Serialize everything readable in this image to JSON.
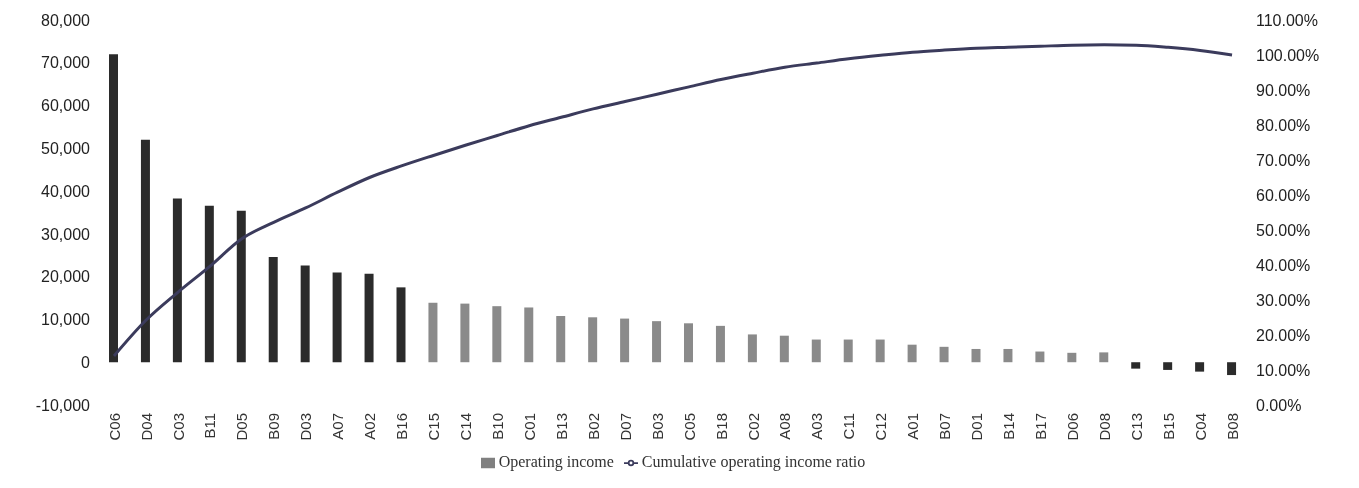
{
  "chart_data": {
    "type": "bar",
    "categories": [
      "C06",
      "D04",
      "C03",
      "B11",
      "D05",
      "B09",
      "D03",
      "A07",
      "A02",
      "B16",
      "C15",
      "C14",
      "B10",
      "C01",
      "B13",
      "B02",
      "D07",
      "B03",
      "C05",
      "B18",
      "C02",
      "A08",
      "A03",
      "C11",
      "C12",
      "A01",
      "B07",
      "D01",
      "B14",
      "B17",
      "D06",
      "D08",
      "C13",
      "B15",
      "C04",
      "B08"
    ],
    "series": [
      {
        "name": "Operating income",
        "color": "#808080",
        "colors": [
          "#2b2b2b",
          "#2b2b2b",
          "#2b2b2b",
          "#2b2b2b",
          "#2b2b2b",
          "#2b2b2b",
          "#2b2b2b",
          "#2b2b2b",
          "#2b2b2b",
          "#2b2b2b",
          "#8a8a8a",
          "#8a8a8a",
          "#8a8a8a",
          "#8a8a8a",
          "#8a8a8a",
          "#8a8a8a",
          "#8a8a8a",
          "#8a8a8a",
          "#8a8a8a",
          "#8a8a8a",
          "#8a8a8a",
          "#8a8a8a",
          "#8a8a8a",
          "#8a8a8a",
          "#8a8a8a",
          "#8a8a8a",
          "#8a8a8a",
          "#8a8a8a",
          "#8a8a8a",
          "#8a8a8a",
          "#8a8a8a",
          "#8a8a8a",
          "#2b2b2b",
          "#2b2b2b",
          "#2b2b2b",
          "#2b2b2b"
        ],
        "values": [
          72000,
          52000,
          38300,
          36600,
          35400,
          24600,
          22600,
          21000,
          20700,
          17500,
          13900,
          13700,
          13100,
          12800,
          10800,
          10500,
          10200,
          9600,
          9100,
          8500,
          6500,
          6200,
          5300,
          5300,
          5300,
          4100,
          3600,
          3100,
          3100,
          2500,
          2200,
          2300,
          -1500,
          -1800,
          -2200,
          -3000
        ]
      },
      {
        "name": "Cumulative operating income ratio",
        "type": "line",
        "axis": "y2",
        "color": "#3b3b5c",
        "values": [
          14,
          24.2,
          32.2,
          39.6,
          47.5,
          52.2,
          56.3,
          60.8,
          65,
          68.3,
          71.3,
          74.2,
          77,
          79.8,
          82.2,
          84.6,
          86.7,
          88.8,
          90.9,
          93,
          94.8,
          96.5,
          97.7,
          98.9,
          99.9,
          100.8,
          101.4,
          101.9,
          102.2,
          102.5,
          102.8,
          102.9,
          102.8,
          102.2,
          101.3,
          100
        ]
      }
    ],
    "ylim": [
      -10000,
      80000
    ],
    "yticks": [
      {
        "value": -10000,
        "label": "-10,000"
      },
      0,
      {
        "value": 10000,
        "label": "10,000"
      },
      {
        "value": 20000,
        "label": "20,000"
      },
      {
        "value": 30000,
        "label": "30,000"
      },
      {
        "value": 40000,
        "label": "40,000"
      },
      {
        "value": 50000,
        "label": "50,000"
      },
      {
        "value": 60000,
        "label": "60,000"
      },
      {
        "value": 70000,
        "label": "70,000"
      },
      {
        "value": 80000,
        "label": "80,000"
      }
    ],
    "y2lim": [
      0,
      110
    ],
    "y2ticks": [
      {
        "value": 0,
        "label": "0.00%"
      },
      {
        "value": 10,
        "label": "10.00%"
      },
      {
        "value": 20,
        "label": "20.00%"
      },
      {
        "value": 30,
        "label": "30.00%"
      },
      {
        "value": 40,
        "label": "40.00%"
      },
      {
        "value": 50,
        "label": "50.00%"
      },
      {
        "value": 60,
        "label": "60.00%"
      },
      {
        "value": 70,
        "label": "70.00%"
      },
      {
        "value": 80,
        "label": "80.00%"
      },
      {
        "value": 90,
        "label": "90.00%"
      },
      {
        "value": 100,
        "label": "100.00%"
      },
      {
        "value": 110,
        "label": "110.00%"
      }
    ],
    "grid": false,
    "legend": "bottom",
    "marker": "none",
    "line_style": "solid"
  }
}
